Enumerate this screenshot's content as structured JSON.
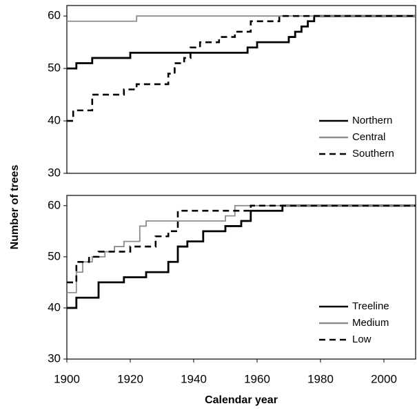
{
  "chart_data": [
    {
      "type": "line",
      "step": true,
      "ylabel": "Number of trees",
      "x": [
        1900,
        1902,
        1903,
        1908,
        1918,
        1920,
        1922,
        1932,
        1934,
        1937,
        1939,
        1942,
        1948,
        1953,
        1957,
        1958,
        1960,
        1967,
        1970,
        1972,
        1974,
        1976,
        1978,
        2010
      ],
      "series": [
        {
          "name": "Northern",
          "color": "#000000",
          "dash": false,
          "values": [
            50,
            50,
            51,
            52,
            52,
            53,
            53,
            53,
            53,
            53,
            53,
            53,
            53,
            53,
            54,
            54,
            55,
            55,
            56,
            57,
            58,
            59,
            60,
            60
          ]
        },
        {
          "name": "Central",
          "color": "#8c8c8c",
          "dash": false,
          "values": [
            59,
            59,
            59,
            59,
            59,
            59,
            60,
            60,
            60,
            60,
            60,
            60,
            60,
            60,
            60,
            60,
            60,
            60,
            60,
            60,
            60,
            60,
            60,
            60
          ]
        },
        {
          "name": "Southern",
          "color": "#000000",
          "dash": true,
          "values": [
            40,
            42,
            42,
            45,
            46,
            46,
            47,
            49,
            51,
            52,
            54,
            55,
            56,
            57,
            57,
            59,
            59,
            60,
            60,
            60,
            60,
            60,
            60,
            60
          ]
        }
      ],
      "xlim": [
        1900,
        2010
      ],
      "ylim": [
        30,
        62
      ],
      "yticks": [
        30,
        40,
        50,
        60
      ],
      "legend": "lower right"
    },
    {
      "type": "line",
      "step": true,
      "xlabel": "Calendar year",
      "x": [
        1900,
        1903,
        1905,
        1907,
        1908,
        1910,
        1912,
        1915,
        1918,
        1920,
        1923,
        1925,
        1928,
        1932,
        1935,
        1938,
        1943,
        1950,
        1953,
        1955,
        1958,
        1968,
        2010
      ],
      "series": [
        {
          "name": "Treeline",
          "color": "#000000",
          "dash": false,
          "values": [
            40,
            42,
            42,
            42,
            42,
            45,
            45,
            45,
            46,
            46,
            46,
            47,
            47,
            49,
            52,
            53,
            55,
            56,
            56,
            57,
            59,
            60,
            60
          ]
        },
        {
          "name": "Medium",
          "color": "#8c8c8c",
          "dash": false,
          "values": [
            43,
            47,
            49,
            49,
            50,
            50,
            51,
            52,
            53,
            53,
            56,
            57,
            57,
            57,
            57,
            57,
            57,
            58,
            60,
            60,
            60,
            60,
            60
          ]
        },
        {
          "name": "Low",
          "color": "#000000",
          "dash": true,
          "values": [
            45,
            49,
            49,
            50,
            50,
            51,
            51,
            51,
            51,
            52,
            52,
            52,
            54,
            55,
            59,
            59,
            59,
            59,
            59,
            59,
            60,
            60,
            60
          ]
        }
      ],
      "xlim": [
        1900,
        2010
      ],
      "xticks": [
        1900,
        1920,
        1940,
        1960,
        1980,
        2000
      ],
      "ylim": [
        30,
        62
      ],
      "yticks": [
        30,
        40,
        50,
        60
      ],
      "legend": "lower right"
    }
  ]
}
